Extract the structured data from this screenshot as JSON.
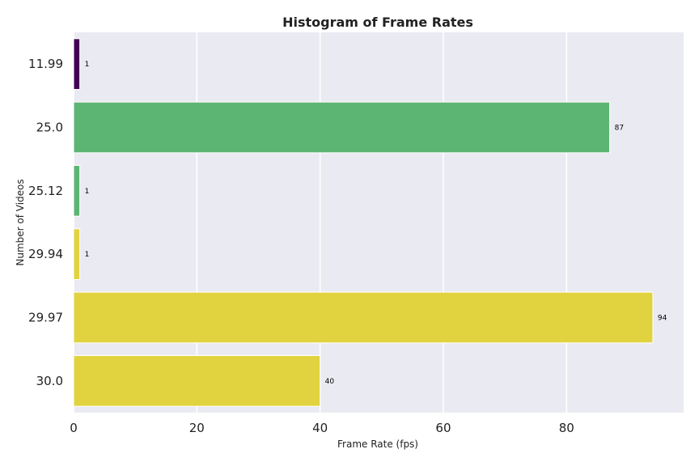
{
  "chart_data": {
    "type": "bar",
    "orientation": "horizontal",
    "title": "Histogram of Frame Rates",
    "xlabel": "Frame Rate (fps)",
    "ylabel": "Number of Videos",
    "categories": [
      "11.99",
      "25.0",
      "25.12",
      "29.94",
      "29.97",
      "30.0"
    ],
    "values": [
      1,
      87,
      1,
      1,
      94,
      40
    ],
    "colors": [
      "#440154",
      "#5cb573",
      "#5cb573",
      "#e1d33f",
      "#e1d33f",
      "#e1d33f"
    ],
    "xlim": [
      0,
      99
    ],
    "xticks": [
      0,
      20,
      40,
      60,
      80
    ],
    "grid": true,
    "background": "#eaeaf2",
    "gridcolor": "#ffffff"
  }
}
